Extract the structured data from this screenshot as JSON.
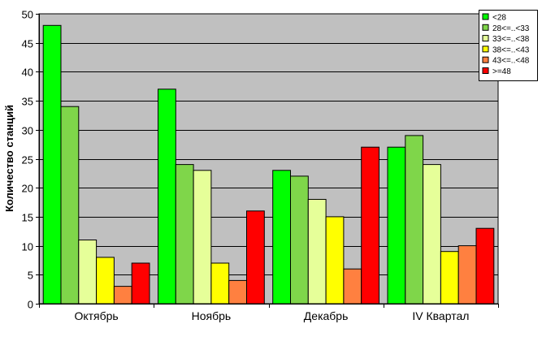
{
  "chart_data": {
    "type": "bar",
    "title": "",
    "xlabel": "",
    "ylabel": "Количество станций",
    "ylim": [
      0,
      50
    ],
    "ytick_step": 5,
    "grid": true,
    "legend_position": "top-right",
    "plot_background": "#c0c0c0",
    "categories": [
      "Октябрь",
      "Ноябрь",
      "Декабрь",
      "IV Квартал"
    ],
    "series": [
      {
        "name": "<28",
        "color": "#00ff00",
        "values": [
          48,
          37,
          23,
          27
        ]
      },
      {
        "name": "28<=..<33",
        "color": "#7fd64a",
        "values": [
          34,
          24,
          22,
          29
        ]
      },
      {
        "name": "33<=..<38",
        "color": "#e6ff99",
        "values": [
          11,
          23,
          18,
          24
        ]
      },
      {
        "name": "38<=..<43",
        "color": "#ffff00",
        "values": [
          8,
          7,
          15,
          9
        ]
      },
      {
        "name": "43<=..<48",
        "color": "#ff8040",
        "values": [
          3,
          4,
          6,
          10
        ]
      },
      {
        "name": ">=48",
        "color": "#ff0000",
        "values": [
          7,
          16,
          27,
          13
        ]
      }
    ]
  }
}
